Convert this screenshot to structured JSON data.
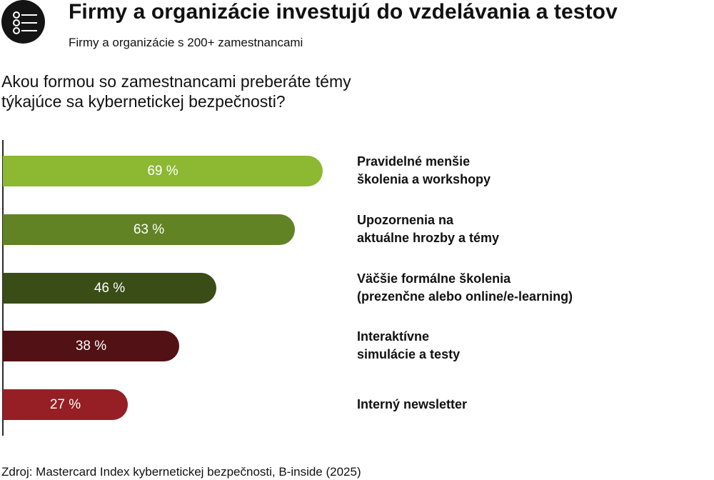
{
  "header": {
    "logo_icon": "list-icon",
    "title": "Firmy a organizácie investujú do vzdelávania a testov",
    "subtitle": "Firmy a organizácie s 200+ zamestnancami"
  },
  "question_line1": "Akou formou so zamestnancami preberáte témy",
  "question_line2": "týkajúce sa kybernetickej bezpečnosti?",
  "chart_data": {
    "type": "bar",
    "orientation": "horizontal",
    "title": "Akou formou so zamestnancami preberáte témy týkajúce sa kybernetickej bezpečnosti?",
    "xlabel": "",
    "ylabel": "",
    "xlim": [
      0,
      100
    ],
    "unit": "%",
    "grid": false,
    "categories": [
      {
        "line1": "Pravidelné menšie",
        "line2": "školenia a workshopy"
      },
      {
        "line1": "Upozornenia na",
        "line2": "aktuálne hrozby a témy"
      },
      {
        "line1": "Väčšie formálne školenia",
        "line2": "(prezenčne alebo online/e-learning)"
      },
      {
        "line1": "Interaktívne",
        "line2": "simulácie a testy"
      },
      {
        "line1": "Interný newsletter",
        "line2": ""
      }
    ],
    "values": [
      69,
      63,
      46,
      38,
      27
    ],
    "labels": [
      "69 %",
      "63 %",
      "46 %",
      "38 %",
      "27 %"
    ],
    "colors": [
      "#8cb832",
      "#628324",
      "#3a4d16",
      "#521114",
      "#951f24"
    ]
  },
  "source": "Zdroj: Mastercard Index kybernetickej bezpečnosti, B-inside (2025)"
}
